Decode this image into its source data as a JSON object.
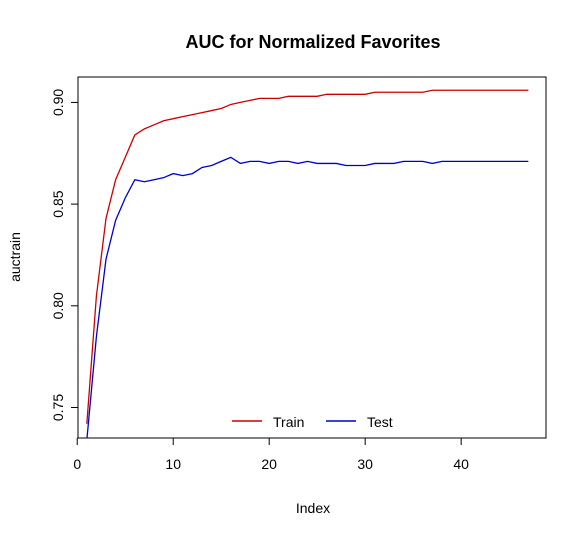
{
  "chart_data": {
    "type": "line",
    "title": "AUC for Normalized Favorites",
    "xlabel": "Index",
    "ylabel": "auctrain",
    "xlim": [
      1,
      47
    ],
    "ylim": [
      0.735,
      0.9125
    ],
    "xticks": [
      0,
      10,
      20,
      30,
      40
    ],
    "xtick_labels": [
      "0",
      "10",
      "20",
      "30",
      "40"
    ],
    "yticks": [
      0.75,
      0.8,
      0.85,
      0.9
    ],
    "ytick_labels": [
      "0.75",
      "0.80",
      "0.85",
      "0.90"
    ],
    "grid": false,
    "legend_position": "bottom-center",
    "x": [
      1,
      2,
      3,
      4,
      5,
      6,
      7,
      8,
      9,
      10,
      11,
      12,
      13,
      14,
      15,
      16,
      17,
      18,
      19,
      20,
      21,
      22,
      23,
      24,
      25,
      26,
      27,
      28,
      29,
      30,
      31,
      32,
      33,
      34,
      35,
      36,
      37,
      38,
      39,
      40,
      41,
      42,
      43,
      44,
      45,
      46,
      47
    ],
    "series": [
      {
        "name": "Train",
        "color": "#cc0000",
        "values": [
          0.742,
          0.805,
          0.843,
          0.862,
          0.873,
          0.884,
          0.887,
          0.889,
          0.891,
          0.892,
          0.893,
          0.894,
          0.895,
          0.896,
          0.897,
          0.899,
          0.9,
          0.901,
          0.902,
          0.902,
          0.902,
          0.903,
          0.903,
          0.903,
          0.903,
          0.904,
          0.904,
          0.904,
          0.904,
          0.904,
          0.905,
          0.905,
          0.905,
          0.905,
          0.905,
          0.905,
          0.906,
          0.906,
          0.906,
          0.906,
          0.906,
          0.906,
          0.906,
          0.906,
          0.906,
          0.906,
          0.906
        ]
      },
      {
        "name": "Test",
        "color": "#0000cc",
        "values": [
          0.734,
          0.785,
          0.823,
          0.842,
          0.853,
          0.862,
          0.861,
          0.862,
          0.863,
          0.865,
          0.864,
          0.865,
          0.868,
          0.869,
          0.871,
          0.873,
          0.87,
          0.871,
          0.871,
          0.87,
          0.871,
          0.871,
          0.87,
          0.871,
          0.87,
          0.87,
          0.87,
          0.869,
          0.869,
          0.869,
          0.87,
          0.87,
          0.87,
          0.871,
          0.871,
          0.871,
          0.87,
          0.871,
          0.871,
          0.871,
          0.871,
          0.871,
          0.871,
          0.871,
          0.871,
          0.871,
          0.871
        ]
      }
    ]
  }
}
